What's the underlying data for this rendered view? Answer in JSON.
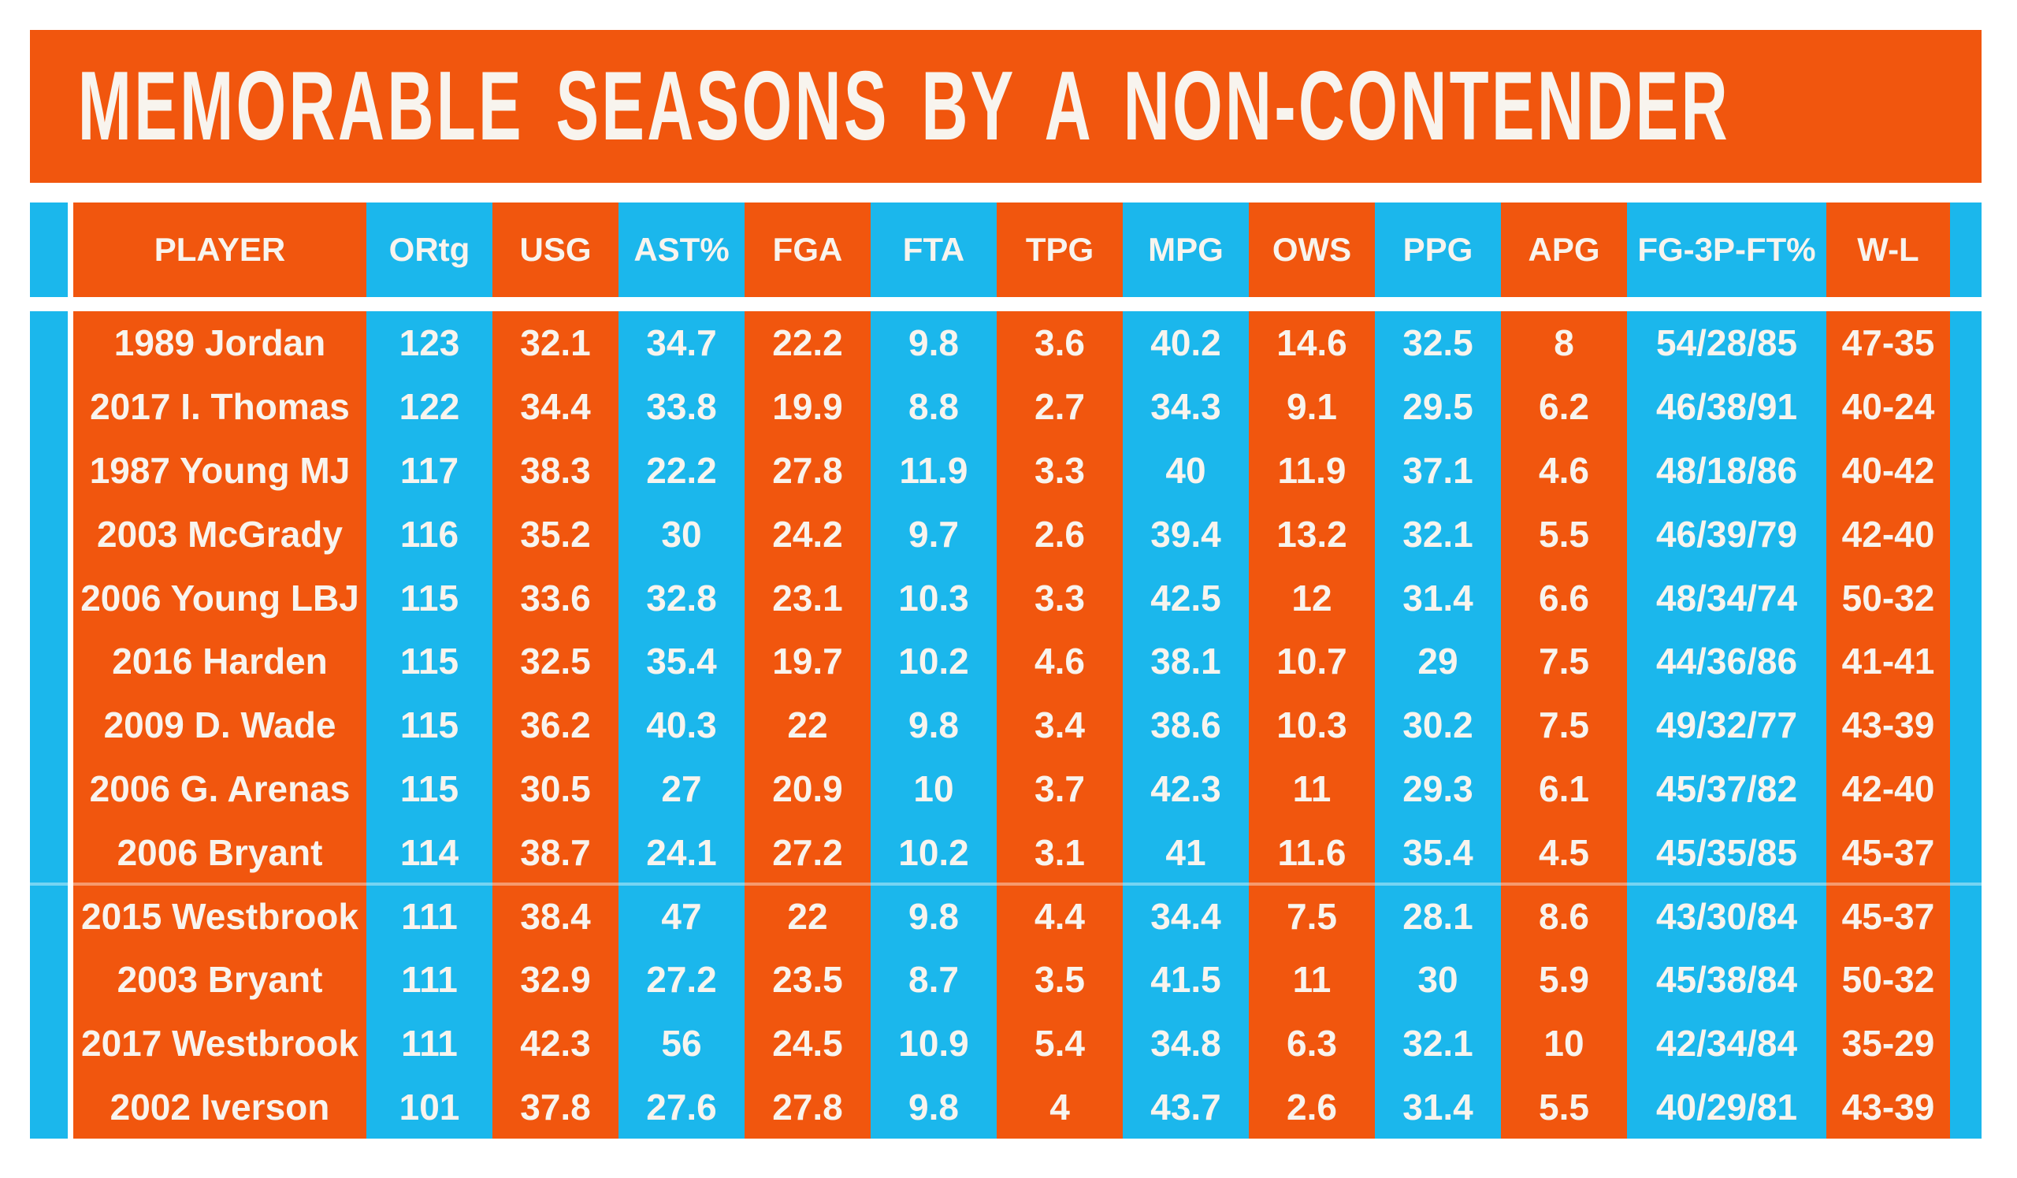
{
  "colors": {
    "orange": "#F1560E",
    "blue": "#1BB7EC",
    "text": "#F8F4EE",
    "page_bg": "#FFFFFF"
  },
  "chart_data": {
    "type": "table",
    "title": "MEMORABLE SEASONS BY A NON-CONTENDER",
    "grid": false,
    "legend_position": "none",
    "columns": [
      "PLAYER",
      "ORtg",
      "USG",
      "AST%",
      "FGA",
      "FTA",
      "TPG",
      "MPG",
      "OWS",
      "PPG",
      "APG",
      "FG-3P-FT%",
      "W-L"
    ],
    "rows": [
      [
        "1989 Jordan",
        "123",
        "32.1",
        "34.7",
        "22.2",
        "9.8",
        "3.6",
        "40.2",
        "14.6",
        "32.5",
        "8",
        "54/28/85",
        "47-35"
      ],
      [
        "2017 I. Thomas",
        "122",
        "34.4",
        "33.8",
        "19.9",
        "8.8",
        "2.7",
        "34.3",
        "9.1",
        "29.5",
        "6.2",
        "46/38/91",
        "40-24"
      ],
      [
        "1987 Young MJ",
        "117",
        "38.3",
        "22.2",
        "27.8",
        "11.9",
        "3.3",
        "40",
        "11.9",
        "37.1",
        "4.6",
        "48/18/86",
        "40-42"
      ],
      [
        "2003 McGrady",
        "116",
        "35.2",
        "30",
        "24.2",
        "9.7",
        "2.6",
        "39.4",
        "13.2",
        "32.1",
        "5.5",
        "46/39/79",
        "42-40"
      ],
      [
        "2006 Young LBJ",
        "115",
        "33.6",
        "32.8",
        "23.1",
        "10.3",
        "3.3",
        "42.5",
        "12",
        "31.4",
        "6.6",
        "48/34/74",
        "50-32"
      ],
      [
        "2016 Harden",
        "115",
        "32.5",
        "35.4",
        "19.7",
        "10.2",
        "4.6",
        "38.1",
        "10.7",
        "29",
        "7.5",
        "44/36/86",
        "41-41"
      ],
      [
        "2009 D. Wade",
        "115",
        "36.2",
        "40.3",
        "22",
        "9.8",
        "3.4",
        "38.6",
        "10.3",
        "30.2",
        "7.5",
        "49/32/77",
        "43-39"
      ],
      [
        "2006 G. Arenas",
        "115",
        "30.5",
        "27",
        "20.9",
        "10",
        "3.7",
        "42.3",
        "11",
        "29.3",
        "6.1",
        "45/37/82",
        "42-40"
      ],
      [
        "2006 Bryant",
        "114",
        "38.7",
        "24.1",
        "27.2",
        "10.2",
        "3.1",
        "41",
        "11.6",
        "35.4",
        "4.5",
        "45/35/85",
        "45-37"
      ],
      [
        "2015 Westbrook",
        "111",
        "38.4",
        "47",
        "22",
        "9.8",
        "4.4",
        "34.4",
        "7.5",
        "28.1",
        "8.6",
        "43/30/84",
        "45-37"
      ],
      [
        "2003 Bryant",
        "111",
        "32.9",
        "27.2",
        "23.5",
        "8.7",
        "3.5",
        "41.5",
        "11",
        "30",
        "5.9",
        "45/38/84",
        "50-32"
      ],
      [
        "2017 Westbrook",
        "111",
        "42.3",
        "56",
        "24.5",
        "10.9",
        "5.4",
        "34.8",
        "6.3",
        "32.1",
        "10",
        "42/34/84",
        "35-29"
      ],
      [
        "2002 Iverson",
        "101",
        "37.8",
        "27.6",
        "27.8",
        "9.8",
        "4",
        "43.7",
        "2.6",
        "31.4",
        "5.5",
        "40/29/81",
        "43-39"
      ]
    ]
  }
}
